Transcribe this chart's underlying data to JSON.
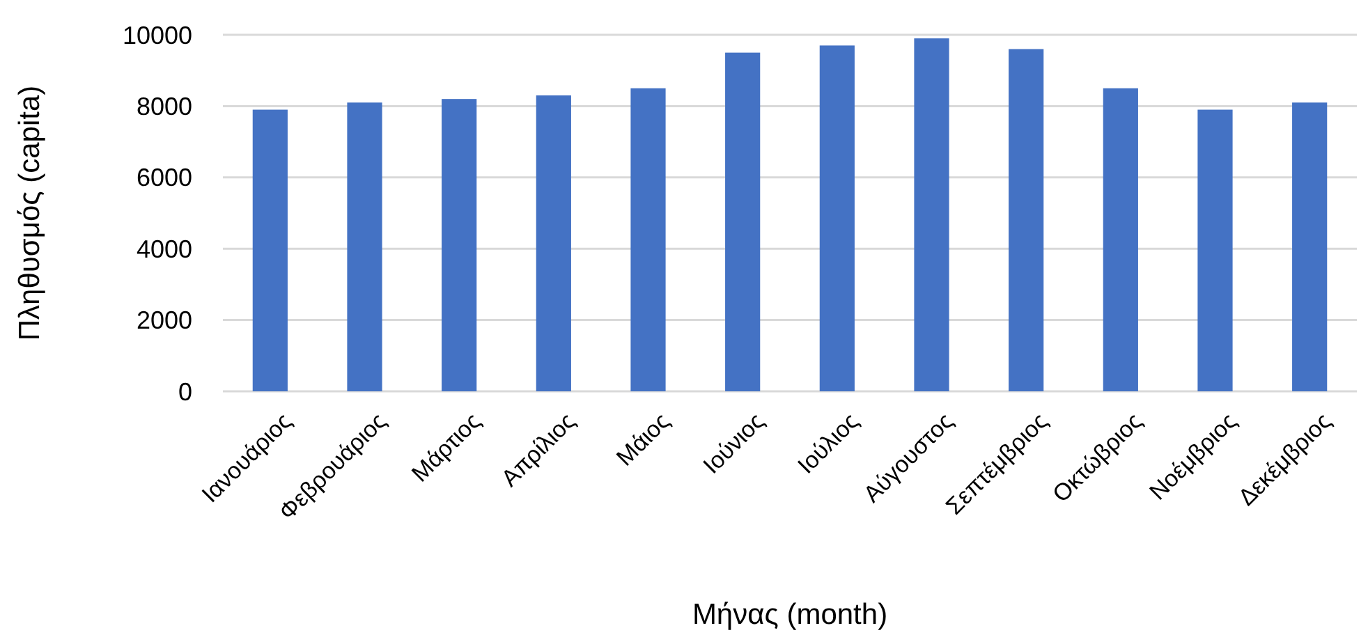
{
  "chart_data": {
    "type": "bar",
    "xlabel": "Μήνας (month)",
    "ylabel": "Πληθυσμός (capita)",
    "categories": [
      "Ιανουάριος",
      "Φεβρουάριος",
      "Μάρτιος",
      "Απρίλιος",
      "Μάιος",
      "Ιούνιος",
      "Ιούλιος",
      "Αύγουστος",
      "Σεπτέμβριος",
      "Οκτώβριος",
      "Νοέμβριος",
      "Δεκέμβριος"
    ],
    "values": [
      7900,
      8100,
      8200,
      8300,
      8500,
      9500,
      9700,
      9900,
      9600,
      8500,
      7900,
      8100
    ],
    "color": "#4472c4",
    "ylim": [
      0,
      10000
    ],
    "yticks": [
      0,
      2000,
      4000,
      6000,
      8000,
      10000
    ],
    "grid": "y"
  }
}
